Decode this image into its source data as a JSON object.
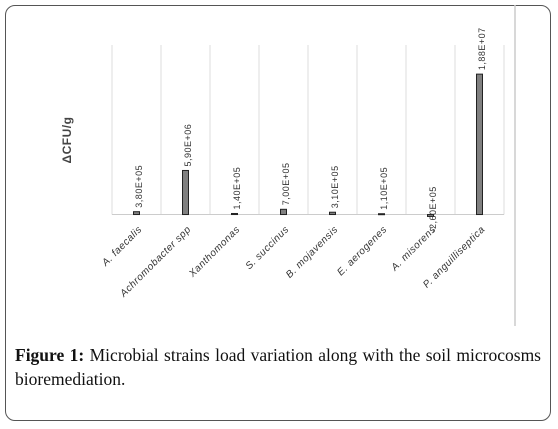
{
  "chart_data": {
    "type": "bar",
    "y_label": "ΔCFU/g",
    "categories": [
      "A. faecalis",
      "Achromobacter spp",
      "Xanthomonas",
      "S. succinus",
      "B. mojavensis",
      "E. aerogenes",
      "A. misorens",
      "P. anguilliseptica"
    ],
    "values": [
      380000,
      5900000,
      140000,
      700000,
      310000,
      110000,
      -260000,
      18800000
    ],
    "value_labels": [
      "3,80E+05",
      "5,90E+06",
      "1,40E+05",
      "7,00E+05",
      "3,10E+05",
      "1,10E+05",
      "-2,60E+05",
      "1,88E+07"
    ],
    "color": "#808080",
    "ylim": [
      -1000000,
      22700000
    ]
  },
  "caption": {
    "label": "Figure 1:",
    "text": "Microbial strains load variation along with the soil microcosms bioremediation."
  }
}
